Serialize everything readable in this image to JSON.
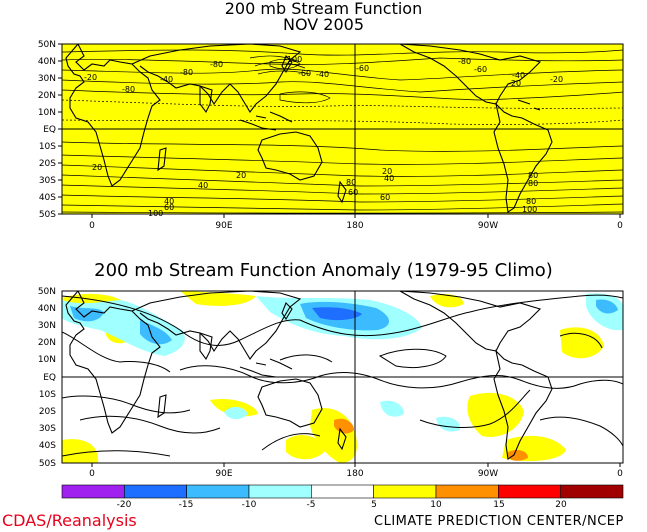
{
  "map1": {
    "title_line1": "200 mb Stream Function",
    "title_line2": "NOV 2005",
    "fill_color": "#ffff00",
    "lat_labels": [
      "50N",
      "40N",
      "30N",
      "20N",
      "10N",
      "EQ",
      "10S",
      "20S",
      "30S",
      "40S",
      "50S"
    ],
    "lon_labels": [
      "0",
      "90E",
      "180",
      "90W",
      "0"
    ],
    "contour_labels": [
      "-80",
      "-80",
      "-100",
      "-60",
      "-60",
      "-80",
      "-40",
      "-40",
      "-20",
      "-60",
      "-40",
      "-20",
      "-80",
      "-20",
      "20",
      "40",
      "20",
      "40",
      "60",
      "80",
      "60",
      "20",
      "40",
      "60",
      "80",
      "80",
      "100",
      "100",
      "80"
    ]
  },
  "map2": {
    "title": "200 mb Stream Function Anomaly (1979-95 Climo)",
    "lat_labels": [
      "50N",
      "40N",
      "30N",
      "20N",
      "10N",
      "EQ",
      "10S",
      "20S",
      "30S",
      "40S",
      "50S"
    ],
    "lon_labels": [
      "0",
      "90E",
      "180",
      "90W",
      "0"
    ]
  },
  "colorbar": {
    "labels": [
      "-20",
      "-15",
      "-10",
      "-5",
      "5",
      "10",
      "15",
      "20"
    ],
    "colors": [
      "#a020f0",
      "#1e6eff",
      "#3cbcff",
      "#a0ffff",
      "#ffffff",
      "#ffff00",
      "#ff9000",
      "#ff0000",
      "#a00000"
    ]
  },
  "footer": {
    "left": "CDAS/Reanalysis",
    "right": "CLIMATE PREDICTION CENTER/NCEP"
  }
}
